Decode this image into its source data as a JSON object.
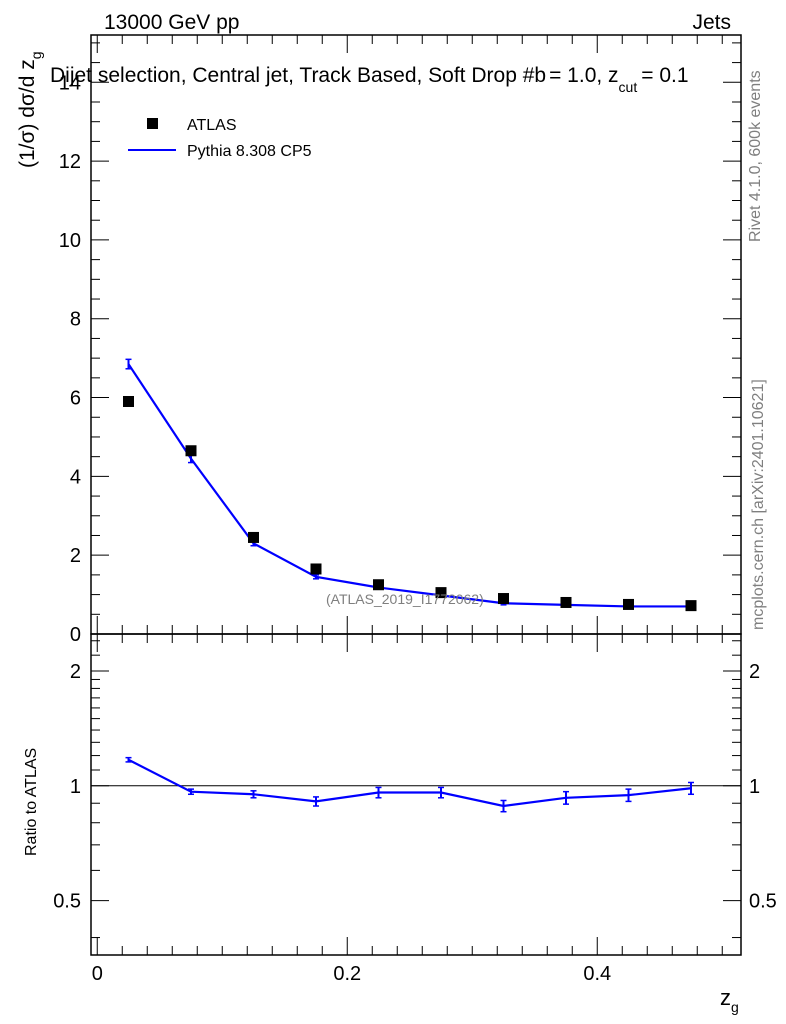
{
  "header": {
    "energy_label": "13000 GeV pp",
    "category_label": "Jets"
  },
  "chart_data": {
    "type": "scatter",
    "title": "Dijet selection, Central jet, Track Based, Soft Drop #b",
    "title_beta": "= 1.0, z",
    "title_cut": "cut",
    "title_zcut": "= 0.1",
    "ylabel": "(1/σ) dσ/d z",
    "ylabel_sub": "g",
    "xlabel": "z",
    "xlabel_sub": "g",
    "ratio_ylabel": "Ratio to ATLAS",
    "xlim": [
      -0.005,
      0.515
    ],
    "ylim": [
      0,
      15.2
    ],
    "ratio_ylim": [
      0.36,
      2.5
    ],
    "x_ticks": [
      0,
      0.2,
      0.4
    ],
    "x_tick_labels": [
      "0",
      "0.2",
      "0.4"
    ],
    "y_ticks": [
      0,
      2,
      4,
      6,
      8,
      10,
      12,
      14
    ],
    "y_tick_labels": [
      "0",
      "2",
      "4",
      "6",
      "8",
      "10",
      "12",
      "14"
    ],
    "ratio_ticks": [
      0.5,
      1,
      2
    ],
    "ratio_tick_labels": [
      "0.5",
      "1",
      "2"
    ],
    "legend": [
      "ATLAS",
      "Pythia 8.308 CP5"
    ],
    "watermark": "(ATLAS_2019_I1772062)",
    "side_label_top": "Rivet 4.1.0,  600k events",
    "side_label_bottom": "mcplots.cern.ch [arXiv:2401.10621]",
    "series": [
      {
        "name": "ATLAS",
        "x": [
          0.025,
          0.075,
          0.125,
          0.175,
          0.225,
          0.275,
          0.325,
          0.375,
          0.425,
          0.475
        ],
        "values": [
          5.9,
          4.65,
          2.45,
          1.65,
          1.25,
          1.05,
          0.9,
          0.8,
          0.75,
          0.72
        ]
      },
      {
        "name": "Pythia 8.308 CP5",
        "x": [
          0.025,
          0.075,
          0.125,
          0.175,
          0.225,
          0.275,
          0.325,
          0.375,
          0.425,
          0.475
        ],
        "values": [
          6.85,
          4.45,
          2.3,
          1.45,
          1.18,
          0.98,
          0.78,
          0.74,
          0.7,
          0.7
        ],
        "errors": [
          0.12,
          0.1,
          0.06,
          0.05,
          0.04,
          0.04,
          0.04,
          0.03,
          0.03,
          0.03
        ]
      }
    ],
    "ratio": {
      "x": [
        0.025,
        0.075,
        0.125,
        0.175,
        0.225,
        0.275,
        0.325,
        0.375,
        0.425,
        0.475
      ],
      "values": [
        1.17,
        0.965,
        0.95,
        0.91,
        0.96,
        0.96,
        0.885,
        0.93,
        0.945,
        0.985
      ],
      "errors": [
        0.015,
        0.015,
        0.02,
        0.025,
        0.03,
        0.03,
        0.03,
        0.035,
        0.035,
        0.035
      ]
    }
  }
}
